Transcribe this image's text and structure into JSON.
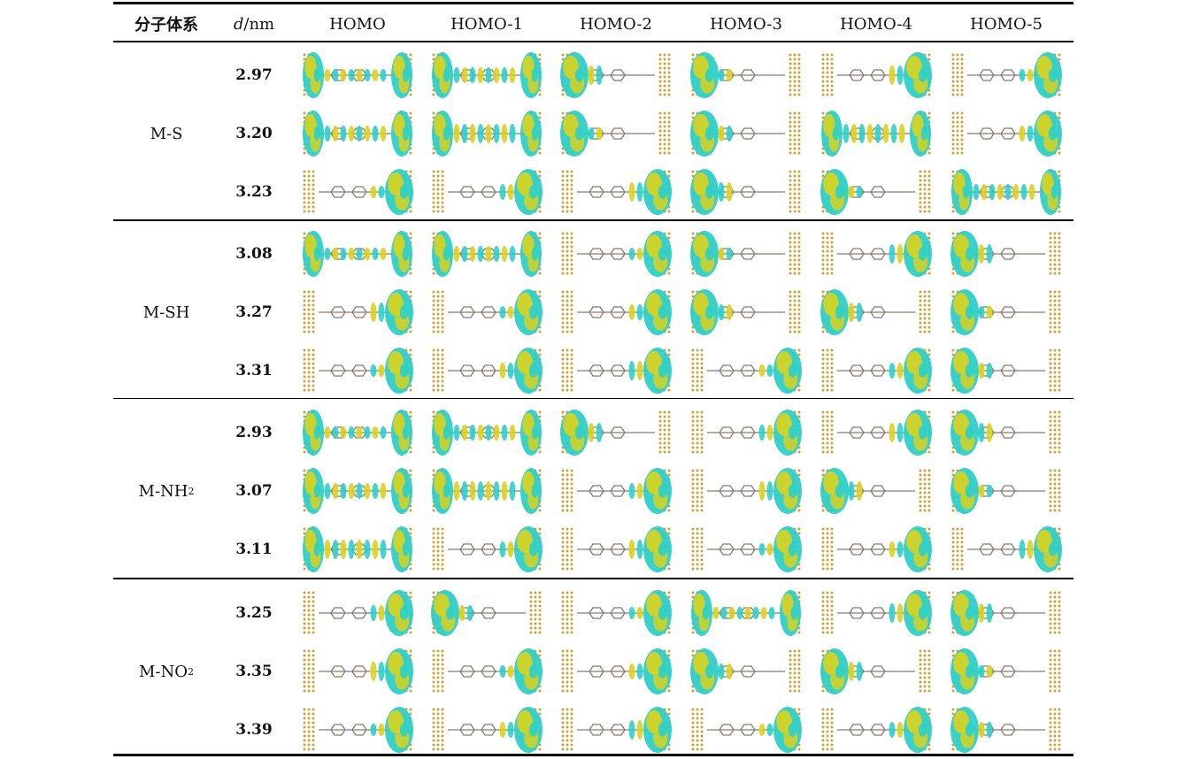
{
  "headers": {
    "system": "分子体系",
    "distance_var": "d",
    "distance_unit": "/nm",
    "orbitals": [
      "HOMO",
      "HOMO-1",
      "HOMO-2",
      "HOMO-3",
      "HOMO-4",
      "HOMO-5"
    ]
  },
  "groups": [
    {
      "label": "M-S",
      "sub": "",
      "distances": [
        "2.97",
        "3.20",
        "3.23"
      ]
    },
    {
      "label": "M-SH",
      "sub": "",
      "distances": [
        "3.08",
        "3.27",
        "3.31"
      ]
    },
    {
      "label": "M-NH",
      "sub": "2",
      "distances": [
        "2.93",
        "3.07",
        "3.11"
      ]
    },
    {
      "label": "M-NO",
      "sub": "2",
      "distances": [
        "3.25",
        "3.35",
        "3.39"
      ]
    }
  ],
  "colors": {
    "positive_lobe": "#d9d21f",
    "negative_lobe": "#2fcfc8",
    "gold_atom": "#c9a23a",
    "carbon_atom": "#8b7a70"
  },
  "orbital_patterns": [
    [
      "both",
      "both",
      "left",
      "left",
      "right",
      "right"
    ],
    [
      "both",
      "both",
      "left",
      "left",
      "both",
      "right"
    ],
    [
      "right",
      "right",
      "right",
      "left",
      "left",
      "both"
    ],
    [
      "both",
      "both",
      "right",
      "left",
      "right",
      "left"
    ],
    [
      "right",
      "right",
      "right",
      "left",
      "left",
      "left"
    ],
    [
      "right",
      "right",
      "right",
      "right",
      "right",
      "left"
    ],
    [
      "both",
      "both",
      "left",
      "right",
      "right",
      "left"
    ],
    [
      "both",
      "both",
      "right",
      "right",
      "left",
      "left"
    ],
    [
      "both",
      "right",
      "right",
      "right",
      "right",
      "right"
    ],
    [
      "right",
      "left",
      "right",
      "both",
      "right",
      "left"
    ],
    [
      "right",
      "right",
      "right",
      "left",
      "left",
      "left"
    ],
    [
      "right",
      "right",
      "right",
      "right",
      "right",
      "left"
    ]
  ]
}
